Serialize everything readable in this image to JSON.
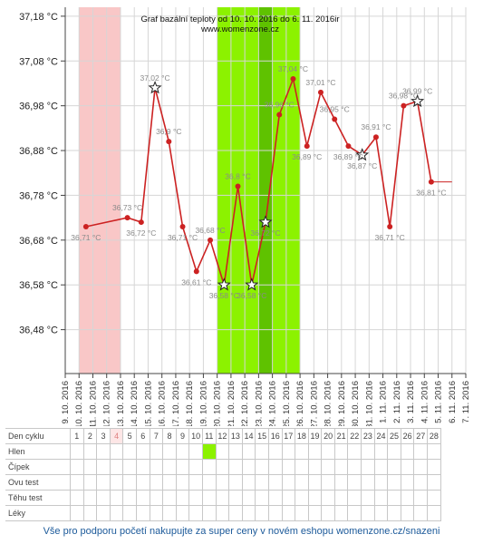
{
  "chart_data": {
    "type": "line",
    "title": "Graf bazální teploty od 10. 10. 2016 do 6. 11. 2016ir",
    "subtitle": "www.womenzone.cz",
    "y_ticks": [
      "37,18 °C",
      "37,08 °C",
      "36,98 °C",
      "36,88 °C",
      "36,78 °C",
      "36,68 °C",
      "36,58 °C",
      "36,48 °C"
    ],
    "y_tick_values": [
      37.18,
      37.08,
      36.98,
      36.88,
      36.78,
      36.68,
      36.58,
      36.48
    ],
    "ylim": [
      36.382,
      37.2
    ],
    "x_labels": [
      "9. 10. 2016",
      "10. 10. 2016",
      "11. 10. 2016",
      "12. 10. 2016",
      "13. 10. 2016",
      "14. 10. 2016",
      "15. 10. 2016",
      "16. 10. 2016",
      "17. 10. 2016",
      "18. 10. 2016",
      "19. 10. 2016",
      "20. 10. 2016",
      "21. 10. 2016",
      "22. 10. 2016",
      "23. 10. 2016",
      "24. 10. 2016",
      "25. 10. 2016",
      "26. 10. 2016",
      "27. 10. 2016",
      "28. 10. 2016",
      "29. 10. 2016",
      "30. 10. 2016",
      "31. 10. 2016",
      "1. 11. 2016",
      "2. 11. 2016",
      "3. 11. 2016",
      "4. 11. 2016",
      "5. 11. 2016",
      "6. 11. 2016",
      "7. 11. 2016"
    ],
    "grid": true,
    "bands": [
      {
        "from_day": 1,
        "to_day": 3,
        "color": "#f9c7c7"
      },
      {
        "from_day": 11,
        "to_day": 16,
        "color": "#8cf200"
      },
      {
        "from_day": 14,
        "to_day": 14,
        "color": "#5fc200"
      }
    ],
    "series": [
      {
        "values": [
          {
            "day": 1,
            "temp": 36.71,
            "label": "36,71 °C"
          },
          {
            "day": 4,
            "temp": 36.73,
            "label": "36,73 °C"
          },
          {
            "day": 5,
            "temp": 36.72,
            "label": "36,72 °C"
          },
          {
            "day": 6,
            "temp": 37.02,
            "label": "37,02 °C",
            "marker": "star"
          },
          {
            "day": 7,
            "temp": 36.9,
            "label": "36,9 °C"
          },
          {
            "day": 8,
            "temp": 36.71,
            "label": "36,71 °C"
          },
          {
            "day": 9,
            "temp": 36.61,
            "label": "36,61 °C"
          },
          {
            "day": 10,
            "temp": 36.68,
            "label": "36,68 °C"
          },
          {
            "day": 11,
            "temp": 36.58,
            "label": "36,58 °C",
            "marker": "star"
          },
          {
            "day": 12,
            "temp": 36.8,
            "label": "36,8 °C"
          },
          {
            "day": 13,
            "temp": 36.58,
            "label": "36,58 °C",
            "marker": "star"
          },
          {
            "day": 14,
            "temp": 36.72,
            "label": "36,72 °C",
            "marker": "star"
          },
          {
            "day": 15,
            "temp": 36.96,
            "label": "36,96 °C"
          },
          {
            "day": 16,
            "temp": 37.04,
            "label": "37,04 °C"
          },
          {
            "day": 17,
            "temp": 36.89,
            "label": "36,89 °C"
          },
          {
            "day": 18,
            "temp": 37.01,
            "label": "37,01 °C"
          },
          {
            "day": 19,
            "temp": 36.95,
            "label": "36,95 °C"
          },
          {
            "day": 20,
            "temp": 36.89,
            "label": "36,89 °C"
          },
          {
            "day": 21,
            "temp": 36.87,
            "label": "36,87 °C",
            "marker": "star"
          },
          {
            "day": 22,
            "temp": 36.91,
            "label": "36,91 °C"
          },
          {
            "day": 23,
            "temp": 36.71,
            "label": "36,71 °C"
          },
          {
            "day": 24,
            "temp": 36.98,
            "label": "36,98 °C"
          },
          {
            "day": 25,
            "temp": 36.99,
            "label": "36,99 °C",
            "marker": "star"
          },
          {
            "day": 26,
            "temp": 36.81,
            "label": "36,81 °C"
          }
        ],
        "color": "#cc2222"
      }
    ],
    "trailing_line": {
      "from_day": 26,
      "to_day": 27.5,
      "temp": 36.81
    }
  },
  "table": {
    "rows": [
      "Den cyklu",
      "Hlen",
      "Čípek",
      "Ovu test",
      "Těhu test",
      "Léky"
    ],
    "days": [
      "1",
      "2",
      "3",
      "4",
      "5",
      "6",
      "7",
      "8",
      "9",
      "10",
      "11",
      "12",
      "13",
      "14",
      "15",
      "16",
      "17",
      "18",
      "19",
      "20",
      "21",
      "22",
      "23",
      "24",
      "25",
      "26",
      "27",
      "28"
    ],
    "hlen_green_day": 11
  },
  "footer": "Vše pro podporu početí nakupujte za super ceny v novém eshopu womenzone.cz/snazeni",
  "colors": {
    "line": "#cc2222",
    "period": "#f9c7c7",
    "fertile": "#8cf200",
    "ovulation": "#5fc200"
  }
}
